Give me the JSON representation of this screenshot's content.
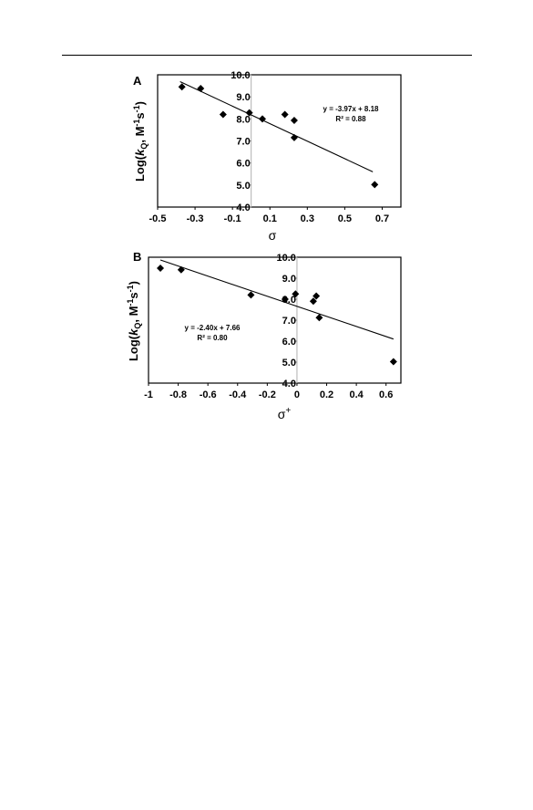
{
  "chart_data": [
    {
      "type": "scatter",
      "panel_label": "A",
      "xlabel": "σ",
      "ylabel_prefix": "Log(",
      "ylabel_italic": "k",
      "ylabel_sub": "Q",
      "ylabel_suffix": ", M",
      "ylabel_sup1": "-1",
      "ylabel_mid": "s",
      "ylabel_sup2": "-1",
      "ylabel_end": ")",
      "xlim": [
        -0.5,
        0.8
      ],
      "ylim": [
        4.0,
        10.0
      ],
      "xticks": [
        "-0.5",
        "-0.3",
        "-0.1",
        "0.1",
        "0.3",
        "0.5",
        "0.7"
      ],
      "xtick_values": [
        -0.5,
        -0.3,
        -0.1,
        0.1,
        0.3,
        0.5,
        0.7
      ],
      "yticks": [
        "4.0",
        "5.0",
        "6.0",
        "7.0",
        "8.0",
        "9.0",
        "10.0"
      ],
      "ytick_values": [
        4,
        5,
        6,
        7,
        8,
        9,
        10
      ],
      "y_axis_at_x": 0,
      "points": [
        {
          "x": -0.37,
          "y": 9.45
        },
        {
          "x": -0.27,
          "y": 9.38
        },
        {
          "x": -0.15,
          "y": 8.2
        },
        {
          "x": -0.01,
          "y": 8.28
        },
        {
          "x": 0.06,
          "y": 8.0
        },
        {
          "x": 0.18,
          "y": 8.2
        },
        {
          "x": 0.23,
          "y": 7.93
        },
        {
          "x": 0.23,
          "y": 7.15
        },
        {
          "x": 0.66,
          "y": 5.02
        }
      ],
      "fit": {
        "slope": -3.97,
        "intercept": 8.18,
        "x_range": [
          -0.38,
          0.65
        ]
      },
      "equation": "y = -3.97x + 8.18",
      "r2": "R² = 0.88"
    },
    {
      "type": "scatter",
      "panel_label": "B",
      "xlabel": "σ",
      "xlabel_sup": "+",
      "ylabel_prefix": "Log(",
      "ylabel_italic": "k",
      "ylabel_sub": "Q",
      "ylabel_suffix": ", M",
      "ylabel_sup1": "-1",
      "ylabel_mid": "s",
      "ylabel_sup2": "-1",
      "ylabel_end": ")",
      "xlim": [
        -1.0,
        0.7
      ],
      "ylim": [
        4.0,
        10.0
      ],
      "xticks": [
        "-1",
        "-0.8",
        "-0.6",
        "-0.4",
        "-0.2",
        "0",
        "0.2",
        "0.4",
        "0.6"
      ],
      "xtick_values": [
        -1,
        -0.8,
        -0.6,
        -0.4,
        -0.2,
        0,
        0.2,
        0.4,
        0.6
      ],
      "yticks": [
        "4.0",
        "5.0",
        "6.0",
        "7.0",
        "8.0",
        "9.0",
        "10.0"
      ],
      "ytick_values": [
        4,
        5,
        6,
        7,
        8,
        9,
        10
      ],
      "y_axis_at_x": 0,
      "points": [
        {
          "x": -0.92,
          "y": 9.48
        },
        {
          "x": -0.78,
          "y": 9.4
        },
        {
          "x": -0.31,
          "y": 8.2
        },
        {
          "x": -0.08,
          "y": 8.0
        },
        {
          "x": -0.01,
          "y": 8.25
        },
        {
          "x": 0.11,
          "y": 7.9
        },
        {
          "x": 0.13,
          "y": 8.15
        },
        {
          "x": 0.15,
          "y": 7.12
        },
        {
          "x": 0.65,
          "y": 5.02
        }
      ],
      "fit": {
        "slope": -2.4,
        "intercept": 7.66,
        "x_range": [
          -0.92,
          0.65
        ]
      },
      "equation": "y = -2.40x + 7.66",
      "r2": "R² = 0.80"
    }
  ]
}
